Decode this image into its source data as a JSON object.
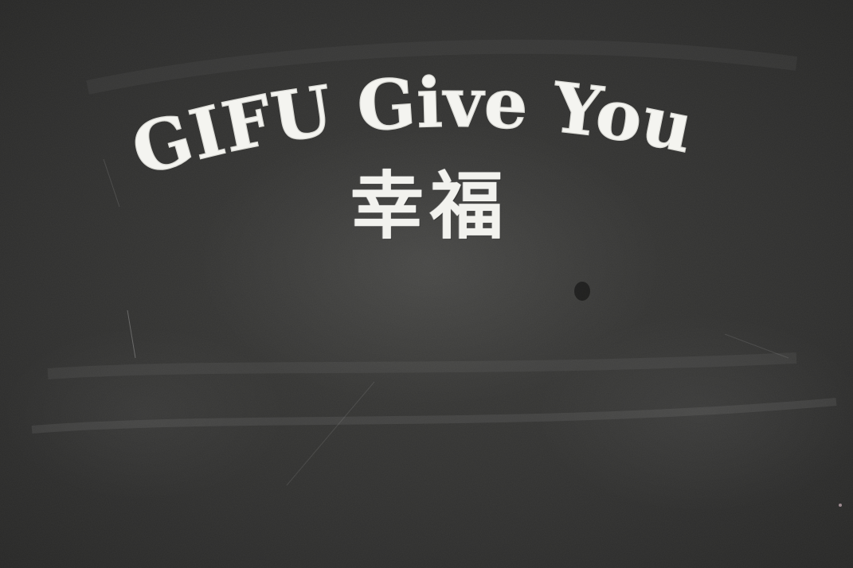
{
  "headline": {
    "text": "GIFU Give You"
  },
  "subline": {
    "text": "幸福"
  },
  "colors": {
    "board": "#2f2f2e",
    "chalk": "#f4f4f0"
  }
}
